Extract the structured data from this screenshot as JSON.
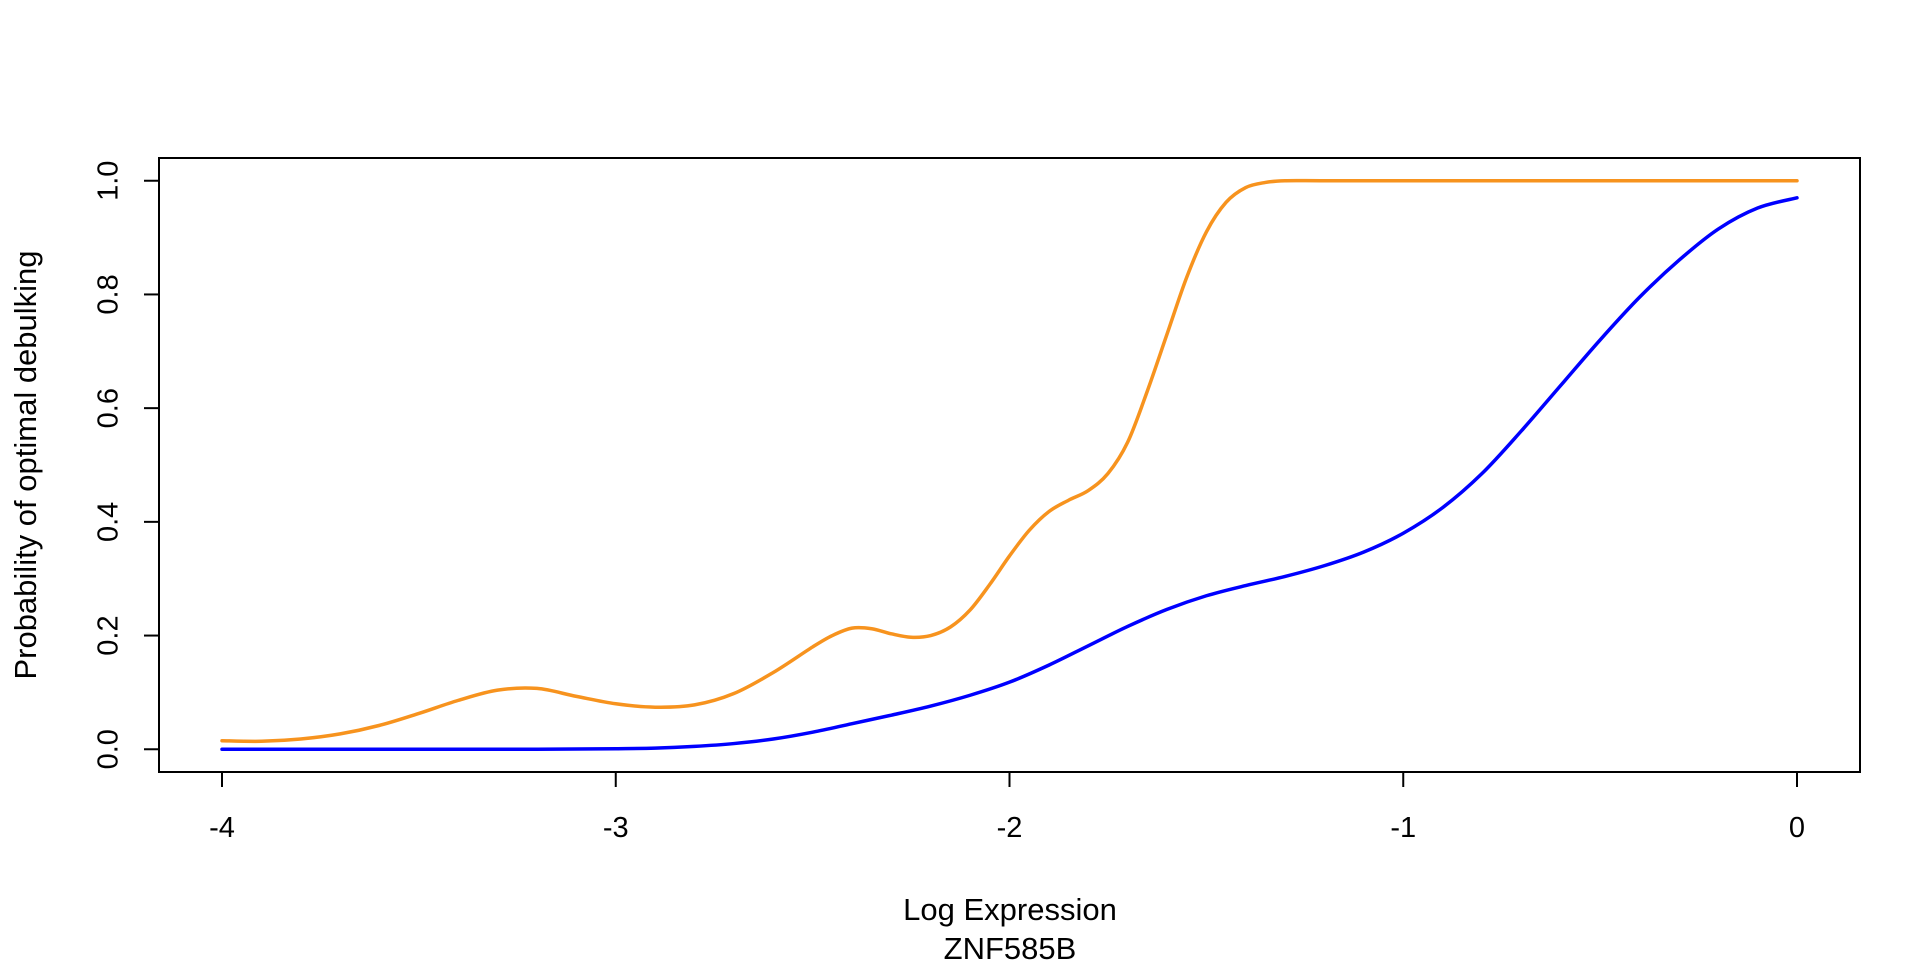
{
  "chart_data": {
    "type": "line",
    "title": "",
    "xlabel": "Log Expression",
    "xlabel_sub": "ZNF585B",
    "ylabel": "Probability of optimal debulking",
    "xlim": [
      -4.16,
      0.16
    ],
    "ylim": [
      -0.04,
      1.04
    ],
    "xticks": [
      -4,
      -3,
      -2,
      -1,
      0
    ],
    "xtick_labels": [
      "-4",
      "-3",
      "-2",
      "-1",
      "0"
    ],
    "yticks": [
      0,
      0.2,
      0.4,
      0.6,
      0.8,
      1
    ],
    "ytick_labels": [
      "0.0",
      "0.2",
      "0.4",
      "0.6",
      "0.8",
      "1.0"
    ],
    "grid": false,
    "legend": "none",
    "series": [
      {
        "color": "#F7931E",
        "x": [
          -4.0,
          -3.9,
          -3.8,
          -3.7,
          -3.6,
          -3.5,
          -3.4,
          -3.3,
          -3.2,
          -3.1,
          -3.0,
          -2.9,
          -2.8,
          -2.7,
          -2.6,
          -2.5,
          -2.45,
          -2.4,
          -2.35,
          -2.3,
          -2.25,
          -2.2,
          -2.15,
          -2.1,
          -2.05,
          -2.0,
          -1.95,
          -1.9,
          -1.85,
          -1.8,
          -1.75,
          -1.7,
          -1.65,
          -1.6,
          -1.55,
          -1.5,
          -1.45,
          -1.4,
          -1.35,
          -1.3,
          -1.2,
          -1.0,
          -0.5,
          0.0
        ],
        "y": [
          0.015,
          0.014,
          0.018,
          0.027,
          0.042,
          0.063,
          0.086,
          0.104,
          0.107,
          0.093,
          0.08,
          0.074,
          0.078,
          0.098,
          0.135,
          0.18,
          0.2,
          0.213,
          0.212,
          0.203,
          0.197,
          0.2,
          0.215,
          0.245,
          0.29,
          0.34,
          0.385,
          0.418,
          0.438,
          0.455,
          0.485,
          0.54,
          0.63,
          0.73,
          0.83,
          0.91,
          0.962,
          0.988,
          0.997,
          1.0,
          1.0,
          1.0,
          1.0,
          1.0
        ]
      },
      {
        "color": "#0000FF",
        "x": [
          -4.0,
          -3.5,
          -3.2,
          -3.0,
          -2.9,
          -2.8,
          -2.7,
          -2.6,
          -2.5,
          -2.4,
          -2.3,
          -2.2,
          -2.1,
          -2.0,
          -1.9,
          -1.8,
          -1.7,
          -1.6,
          -1.5,
          -1.4,
          -1.3,
          -1.2,
          -1.1,
          -1.0,
          -0.9,
          -0.8,
          -0.7,
          -0.6,
          -0.5,
          -0.4,
          -0.3,
          -0.2,
          -0.1,
          0.0
        ],
        "y": [
          0.0,
          0.0,
          0.0,
          0.001,
          0.002,
          0.005,
          0.01,
          0.018,
          0.03,
          0.045,
          0.06,
          0.076,
          0.095,
          0.118,
          0.148,
          0.182,
          0.216,
          0.246,
          0.27,
          0.288,
          0.304,
          0.323,
          0.347,
          0.38,
          0.425,
          0.485,
          0.56,
          0.64,
          0.72,
          0.795,
          0.86,
          0.915,
          0.952,
          0.97
        ]
      }
    ]
  }
}
